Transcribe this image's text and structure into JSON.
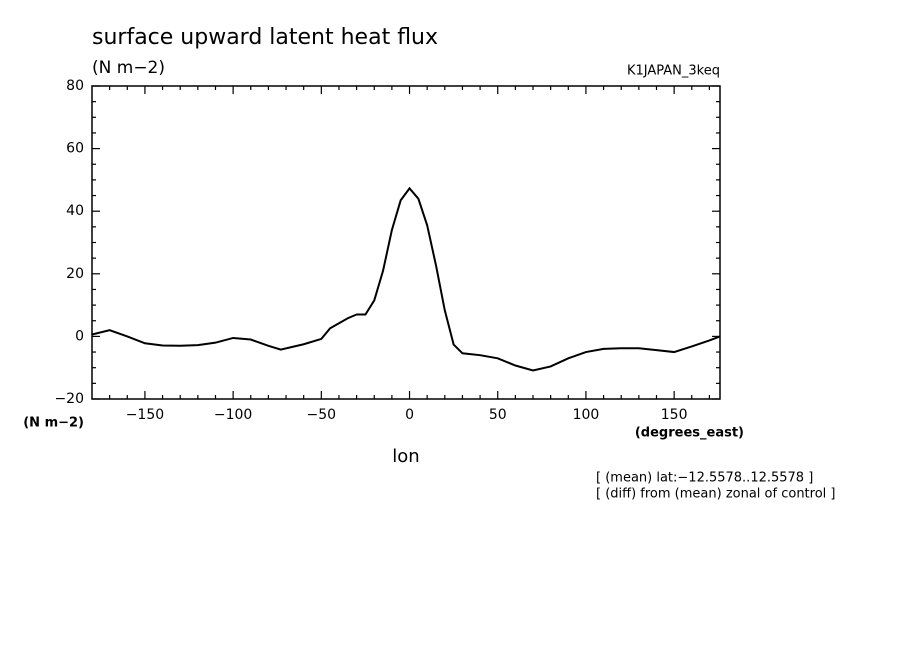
{
  "chart_data": {
    "type": "line",
    "title": "surface upward latent heat flux",
    "units": "(N m−2)",
    "run_label": "K1JAPAN_3keq",
    "y_units": "(N m−2)",
    "x_units": "(degrees_east)",
    "xlabel": "lon",
    "notes": [
      "[ (mean) lat:−12.5578..12.5578 ]",
      "[ (diff) from (mean) zonal of control ]"
    ],
    "x": [
      -180,
      -170,
      -160,
      -150,
      -140,
      -130,
      -120,
      -110,
      -100,
      -90,
      -80,
      -73,
      -60,
      -50,
      -45,
      -35,
      -30,
      -25,
      -20,
      -15,
      -10,
      -5,
      0,
      5,
      10,
      15,
      20,
      25,
      30,
      40,
      50,
      60,
      70,
      80,
      90,
      100,
      110,
      120,
      130,
      140,
      150,
      160,
      170,
      176
    ],
    "series": [
      {
        "name": "surface upward latent heat flux",
        "color": "#000000",
        "values": [
          0.6,
          2,
          0,
          -2.2,
          -2.9,
          -3,
          -2.8,
          -2,
          -0.5,
          -1,
          -3,
          -4.2,
          -2.5,
          -0.8,
          2.6,
          5.8,
          7,
          7,
          11.5,
          21,
          34,
          43.5,
          47.3,
          44,
          35.5,
          22.7,
          8.3,
          -2.6,
          -5.4,
          -6,
          -7,
          -9.3,
          -10.9,
          -9.6,
          -7,
          -5,
          -4,
          -3.8,
          -3.8,
          -4.4,
          -5,
          -3.2,
          -1.3,
          0
        ]
      }
    ],
    "xlim": [
      -180,
      176
    ],
    "ylim": [
      -20,
      80
    ],
    "xticks": [
      {
        "value": -150,
        "label": "−150"
      },
      {
        "value": -100,
        "label": "−100"
      },
      {
        "value": -50,
        "label": "−50"
      },
      0,
      50,
      100,
      150
    ],
    "yticks": [
      {
        "value": -20,
        "label": "−20"
      },
      0,
      20,
      40,
      60,
      80
    ],
    "xminorticks": [
      -170,
      -160,
      -140,
      -130,
      -120,
      -110,
      -90,
      -80,
      -70,
      -60,
      -40,
      -30,
      -20,
      -10,
      10,
      20,
      30,
      40,
      60,
      70,
      80,
      90,
      110,
      120,
      130,
      140,
      160,
      170
    ],
    "yminorticks": [
      -15,
      -10,
      -5,
      5,
      10,
      15,
      25,
      30,
      35,
      45,
      50,
      55,
      65,
      70,
      75
    ]
  }
}
